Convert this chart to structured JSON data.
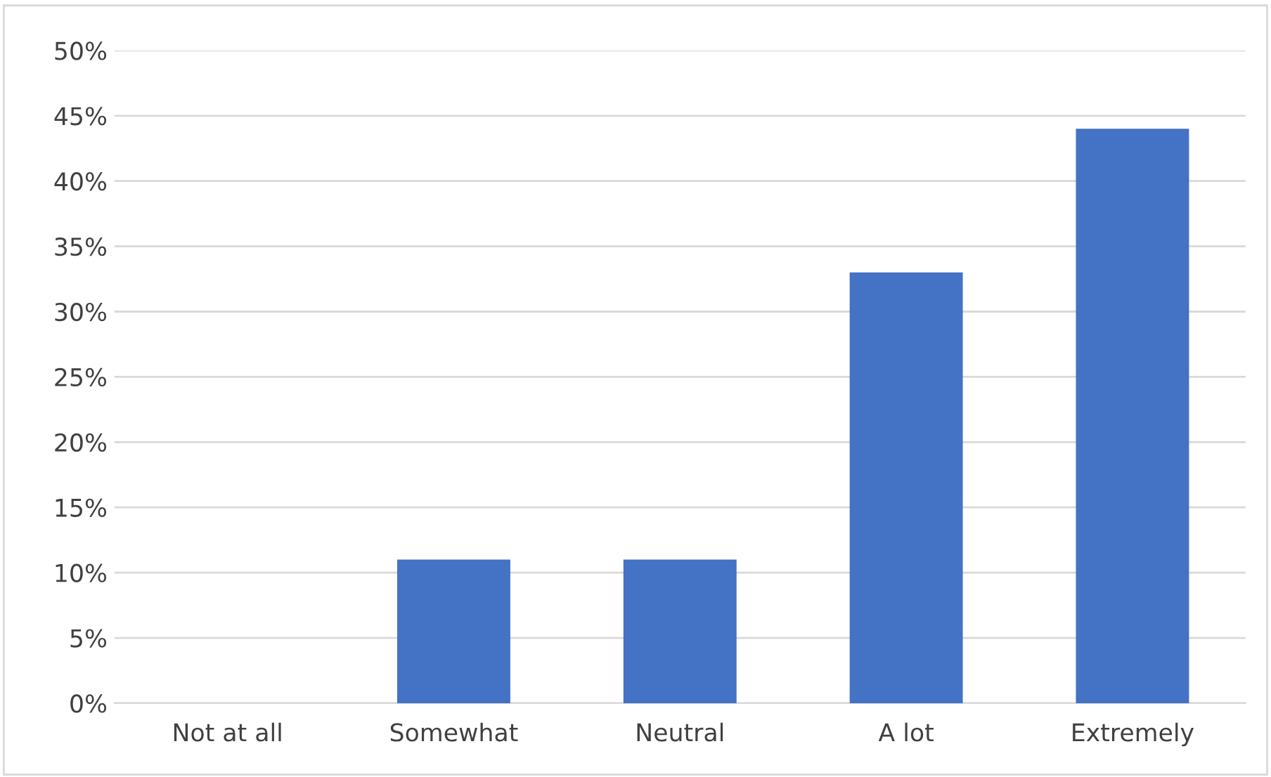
{
  "chart_data": {
    "type": "bar",
    "categories": [
      "Not at all",
      "Somewhat",
      "Neutral",
      "A lot",
      "Extremely"
    ],
    "values": [
      0,
      11,
      11,
      33,
      44
    ],
    "color": "#4472c4",
    "ylim": [
      0,
      50
    ],
    "yticks": [
      {
        "value": 0,
        "label": "0%"
      },
      {
        "value": 5,
        "label": "5%"
      },
      {
        "value": 10,
        "label": "10%"
      },
      {
        "value": 15,
        "label": "15%"
      },
      {
        "value": 20,
        "label": "20%"
      },
      {
        "value": 25,
        "label": "25%"
      },
      {
        "value": 30,
        "label": "30%"
      },
      {
        "value": 35,
        "label": "35%"
      },
      {
        "value": 40,
        "label": "40%"
      },
      {
        "value": 45,
        "label": "45%"
      },
      {
        "value": 50,
        "label": "50%"
      }
    ],
    "grid": "y"
  }
}
